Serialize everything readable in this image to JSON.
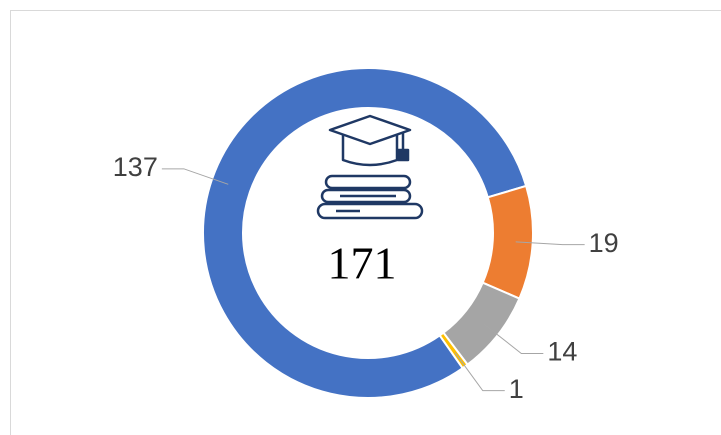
{
  "chart_data": {
    "type": "donut",
    "categories": [
      null,
      null,
      null,
      null
    ],
    "values": [
      137,
      19,
      14,
      1
    ],
    "colors": [
      "#4472c4",
      "#ed7d31",
      "#a5a5a5",
      "#ffc000"
    ],
    "start_angle": 145,
    "total": 171
  }
}
